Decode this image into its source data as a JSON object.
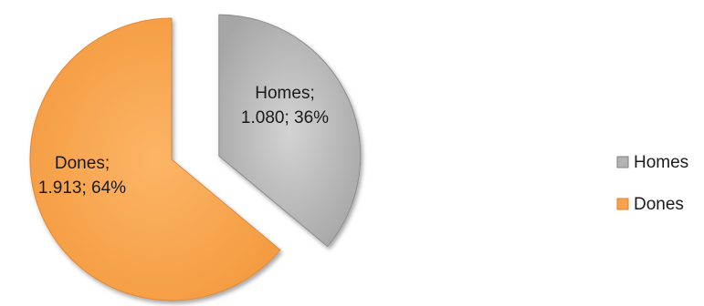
{
  "chart_data": {
    "type": "pie",
    "title": "",
    "labels": [
      "Homes",
      "Dones"
    ],
    "values": [
      1080,
      1913
    ],
    "value_labels": [
      "1.080",
      "1.913"
    ],
    "percentages": [
      36,
      64
    ],
    "data_labels": [
      [
        "Homes;",
        "1.080; 36%"
      ],
      [
        "Dones;",
        "1.913; 64%"
      ]
    ],
    "colors": [
      "#b3b3b3",
      "#f9a24c"
    ],
    "exploded": true,
    "legend": "right"
  }
}
